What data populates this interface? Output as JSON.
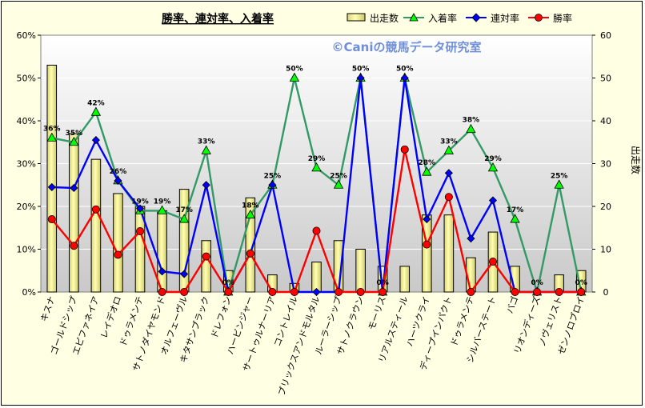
{
  "chart_data": {
    "type": "bar+line",
    "title": "勝率、連対率、入着率",
    "watermark": "©Caniの競馬データ研究室",
    "ylabel_right": "出走数",
    "ylim_left": [
      0,
      60
    ],
    "ylim_right": [
      0,
      60
    ],
    "yticks_left": [
      "0%",
      "10%",
      "20%",
      "30%",
      "40%",
      "50%",
      "60%"
    ],
    "yticks_right": [
      "0",
      "10",
      "20",
      "30",
      "40",
      "50",
      "60"
    ],
    "categories": [
      "キスナ",
      "ゴールドシップ",
      "エピファネイア",
      "レイデオロ",
      "ドゥラメンテ",
      "サトノダイヤモンド",
      "オルフェーヴル",
      "キタサンブラック",
      "ドレフォン",
      "ハービンジャー",
      "サートゥルナーリア",
      "コントレイル",
      "ブリックスアンドモルタル",
      "ルーラーシップ",
      "サトノクラウン",
      "モーリス",
      "リアルスティール",
      "ハーツクライ",
      "ディープインパクト",
      "ドゥラメンテ",
      "シルバーステート",
      "バゴ",
      "リオンディーズ",
      "ノヴェリスト",
      "ゼンノロブロイ"
    ],
    "legend": [
      "出走数",
      "入着率",
      "連対率",
      "勝率"
    ],
    "colors": {
      "bar": "#ffff99",
      "entry": "#339966",
      "entry_marker": "#00ff00",
      "rentai": "#0000ff",
      "win": "#ff0000"
    },
    "series": [
      {
        "name": "出走数",
        "kind": "bar",
        "axis": "right",
        "values": [
          53,
          37,
          31,
          23,
          20,
          19,
          24,
          12,
          5,
          22,
          4,
          2,
          7,
          12,
          10,
          6,
          6,
          18,
          18,
          8,
          14,
          6,
          0,
          4,
          5
        ]
      },
      {
        "name": "入着率",
        "kind": "line",
        "axis": "left",
        "values": [
          36,
          35,
          42,
          26,
          19,
          19,
          17,
          33,
          0,
          18,
          25,
          50,
          29,
          25,
          50,
          0,
          50,
          28,
          33,
          38,
          29,
          17,
          0,
          25,
          0
        ]
      },
      {
        "name": "連対率",
        "kind": "line",
        "axis": "left",
        "values": [
          24.5,
          24.3,
          35.5,
          26,
          19.5,
          4.8,
          4.2,
          25,
          0,
          9,
          25,
          0,
          0,
          0,
          50,
          0,
          50,
          17,
          27.8,
          12.5,
          21.4,
          0,
          0,
          0,
          0
        ]
      },
      {
        "name": "勝率",
        "kind": "line",
        "axis": "left",
        "values": [
          17,
          10.8,
          19.3,
          8.7,
          14.2,
          0,
          0,
          8.3,
          0,
          9,
          0,
          0,
          14.3,
          0,
          0,
          0,
          33.3,
          11.1,
          22.2,
          0,
          7.1,
          0,
          0,
          0,
          0
        ]
      }
    ],
    "data_labels": [
      {
        "series": "入着率",
        "index": 0,
        "text": "36%"
      },
      {
        "series": "入着率",
        "index": 1,
        "text": "35%"
      },
      {
        "series": "入着率",
        "index": 2,
        "text": "42%"
      },
      {
        "series": "入着率",
        "index": 3,
        "text": "26%"
      },
      {
        "series": "入着率",
        "index": 4,
        "text": "19%"
      },
      {
        "series": "入着率",
        "index": 5,
        "text": "19%"
      },
      {
        "series": "入着率",
        "index": 6,
        "text": "17%"
      },
      {
        "series": "入着率",
        "index": 7,
        "text": "33%"
      },
      {
        "series": "入着率",
        "index": 8,
        "text": "0%"
      },
      {
        "series": "入着率",
        "index": 9,
        "text": "18%"
      },
      {
        "series": "入着率",
        "index": 10,
        "text": "25%"
      },
      {
        "series": "入着率",
        "index": 11,
        "text": "50%"
      },
      {
        "series": "入着率",
        "index": 12,
        "text": "29%"
      },
      {
        "series": "入着率",
        "index": 13,
        "text": "25%"
      },
      {
        "series": "入着率",
        "index": 14,
        "text": "50%"
      },
      {
        "series": "入着率",
        "index": 15,
        "text": "0%"
      },
      {
        "series": "入着率",
        "index": 16,
        "text": "50%"
      },
      {
        "series": "入着率",
        "index": 17,
        "text": "28%"
      },
      {
        "series": "入着率",
        "index": 18,
        "text": "33%"
      },
      {
        "series": "入着率",
        "index": 19,
        "text": "38%"
      },
      {
        "series": "入着率",
        "index": 20,
        "text": "29%"
      },
      {
        "series": "入着率",
        "index": 21,
        "text": "17%"
      },
      {
        "series": "入着率",
        "index": 22,
        "text": "0%"
      },
      {
        "series": "入着率",
        "index": 23,
        "text": "25%"
      },
      {
        "series": "入着率",
        "index": 24,
        "text": "0%"
      }
    ]
  }
}
